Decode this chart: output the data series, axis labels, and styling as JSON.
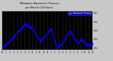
{
  "title": "Milwaukee Barometric Pressure per Minute (24 Hours)",
  "background_color": "#c8c8c8",
  "plot_bg_color": "#000000",
  "dot_color": "#0000ff",
  "grid_color": "#808080",
  "legend_bg_color": "#0000ff",
  "title_color": "#000000",
  "tick_color": "#000000",
  "y_min": 29.35,
  "y_max": 30.25,
  "y_ticks": [
    29.4,
    29.6,
    29.8,
    30.0,
    30.2
  ],
  "hours": 24,
  "num_points": 1440,
  "seed": 7
}
